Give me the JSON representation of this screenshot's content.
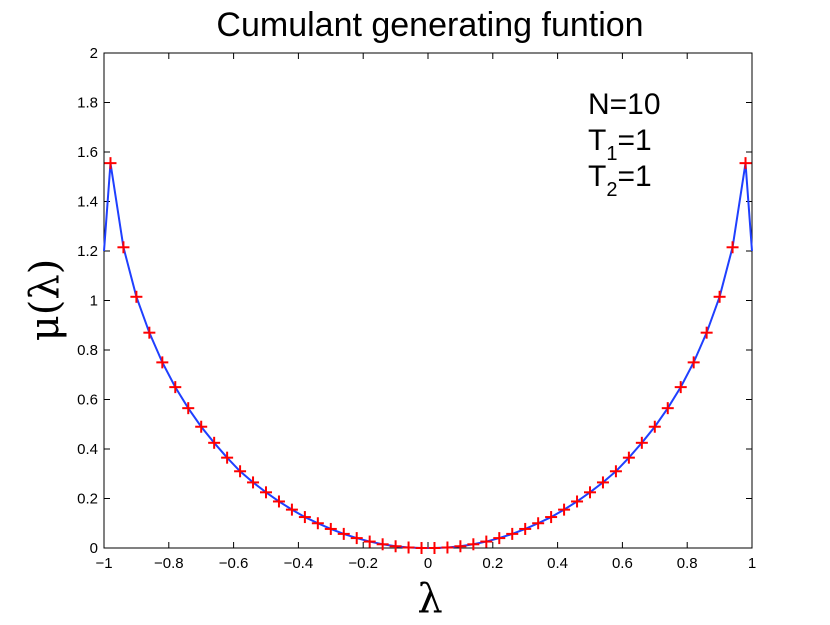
{
  "chart_data": {
    "type": "line",
    "title": "Cumulant generating funtion",
    "xlabel": "λ",
    "ylabel": "μ(λ)",
    "xlim": [
      -1,
      1
    ],
    "ylim": [
      0,
      2
    ],
    "xticks": [
      -1,
      -0.8,
      -0.6,
      -0.4,
      -0.2,
      0,
      0.2,
      0.4,
      0.6,
      0.8,
      1
    ],
    "xtick_labels": [
      "−1",
      "−0.8",
      "−0.6",
      "−0.4",
      "−0.2",
      "0",
      "0.2",
      "0.4",
      "0.6",
      "0.8",
      "1"
    ],
    "yticks": [
      0,
      0.2,
      0.4,
      0.6,
      0.8,
      1,
      1.2,
      1.4,
      1.6,
      1.8,
      2
    ],
    "ytick_labels": [
      "0",
      "0.2",
      "0.4",
      "0.6",
      "0.8",
      "1",
      "1.2",
      "1.4",
      "1.6",
      "1.8",
      "2"
    ],
    "grid": false,
    "annotations": [
      {
        "base": "N=10",
        "sub": "",
        "rest": ""
      },
      {
        "base": "T",
        "sub": "1",
        "rest": "=1"
      },
      {
        "base": "T",
        "sub": "2",
        "rest": "=1"
      }
    ],
    "series": [
      {
        "style": "line",
        "color": "#1f3fff",
        "x": [
          -1.0,
          -0.98,
          -0.94,
          -0.9,
          -0.86,
          -0.82,
          -0.78,
          -0.74,
          -0.7,
          -0.66,
          -0.62,
          -0.58,
          -0.54,
          -0.5,
          -0.46,
          -0.42,
          -0.38,
          -0.34,
          -0.3,
          -0.26,
          -0.22,
          -0.18,
          -0.14,
          -0.1,
          -0.06,
          -0.02,
          0.02,
          0.06,
          0.1,
          0.14,
          0.18,
          0.22,
          0.26,
          0.3,
          0.34,
          0.38,
          0.42,
          0.46,
          0.5,
          0.54,
          0.58,
          0.62,
          0.66,
          0.7,
          0.74,
          0.78,
          0.82,
          0.86,
          0.9,
          0.94,
          0.98,
          1.0
        ],
        "y": [
          1.2,
          1.555,
          1.215,
          1.015,
          0.87,
          0.75,
          0.65,
          0.565,
          0.49,
          0.425,
          0.365,
          0.31,
          0.265,
          0.225,
          0.188,
          0.155,
          0.125,
          0.1,
          0.077,
          0.057,
          0.04,
          0.026,
          0.015,
          0.007,
          0.002,
          0.0,
          0.0,
          0.002,
          0.007,
          0.015,
          0.026,
          0.04,
          0.057,
          0.077,
          0.1,
          0.125,
          0.155,
          0.188,
          0.225,
          0.265,
          0.31,
          0.365,
          0.425,
          0.49,
          0.565,
          0.65,
          0.75,
          0.87,
          1.015,
          1.215,
          1.555,
          1.2
        ]
      },
      {
        "style": "markers",
        "marker": "+",
        "color": "#ff0000",
        "x": [
          -0.98,
          -0.94,
          -0.9,
          -0.86,
          -0.82,
          -0.78,
          -0.74,
          -0.7,
          -0.66,
          -0.62,
          -0.58,
          -0.54,
          -0.5,
          -0.46,
          -0.42,
          -0.38,
          -0.34,
          -0.3,
          -0.26,
          -0.22,
          -0.18,
          -0.14,
          -0.1,
          -0.06,
          -0.02,
          0.02,
          0.06,
          0.1,
          0.14,
          0.18,
          0.22,
          0.26,
          0.3,
          0.34,
          0.38,
          0.42,
          0.46,
          0.5,
          0.54,
          0.58,
          0.62,
          0.66,
          0.7,
          0.74,
          0.78,
          0.82,
          0.86,
          0.9,
          0.94,
          0.98
        ],
        "y": [
          1.555,
          1.215,
          1.015,
          0.87,
          0.75,
          0.65,
          0.565,
          0.49,
          0.425,
          0.365,
          0.31,
          0.265,
          0.225,
          0.188,
          0.155,
          0.125,
          0.1,
          0.077,
          0.057,
          0.04,
          0.026,
          0.015,
          0.007,
          0.002,
          0.0,
          0.0,
          0.002,
          0.007,
          0.015,
          0.026,
          0.04,
          0.057,
          0.077,
          0.1,
          0.125,
          0.155,
          0.188,
          0.225,
          0.265,
          0.31,
          0.365,
          0.425,
          0.49,
          0.565,
          0.65,
          0.75,
          0.87,
          1.015,
          1.215,
          1.555
        ]
      }
    ]
  }
}
